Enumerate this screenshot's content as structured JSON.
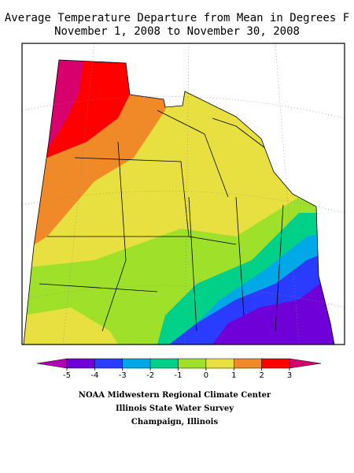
{
  "header": {
    "title_lines": [
      "Average Temperature Departure from Mean in Degrees F",
      "November 1, 2008 to November 30, 2008"
    ]
  },
  "colorbar": {
    "ticks": [
      -5,
      -4,
      -3,
      -2,
      -1,
      0,
      1,
      2,
      3
    ],
    "colors": [
      "#b000b8",
      "#7000d8",
      "#2a3cff",
      "#00a8e8",
      "#00d088",
      "#9ee02a",
      "#e8e040",
      "#f08a28",
      "#ff0000",
      "#d8006c"
    ]
  },
  "credits": [
    "NOAA Midwestern Regional Climate Center",
    "Illinois State Water Survey",
    "Champaign, Illinois"
  ]
}
